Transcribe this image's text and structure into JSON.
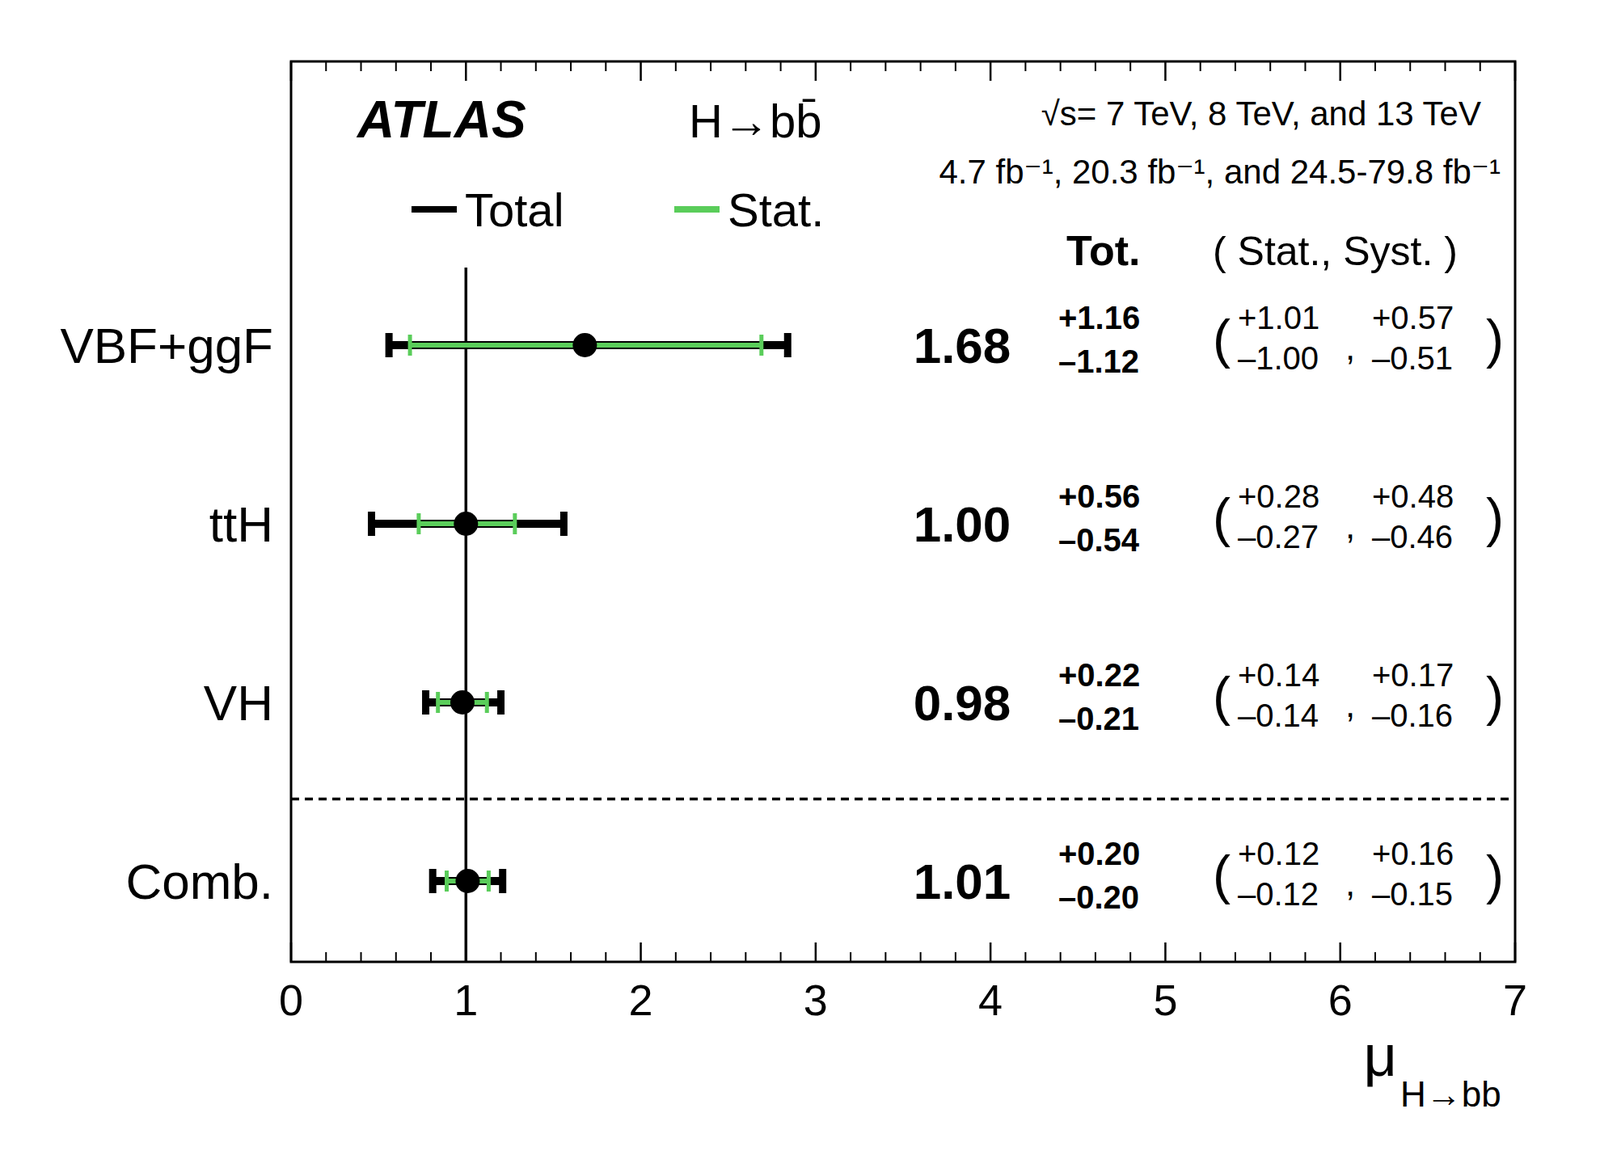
{
  "chart_data": {
    "type": "errorbar",
    "orientation": "horizontal",
    "experiment": "ATLAS",
    "process": "H→bb̄",
    "energy": "√s= 7 TeV, 8 TeV, and 13 TeV",
    "luminosity": "4.7 fb⁻¹, 20.3 fb⁻¹, and 24.5-79.8 fb⁻¹",
    "column_headers": [
      "Tot.",
      "( Stat., Syst. )"
    ],
    "row_punctuation": [
      "(",
      ",",
      ")"
    ],
    "categories": [
      "VBF+ggF",
      "ttH",
      "VH",
      "Comb."
    ],
    "values": [
      1.68,
      1.0,
      0.98,
      1.01
    ],
    "value_labels": [
      "1.68",
      "1.00",
      "0.98",
      "1.01"
    ],
    "series": [
      {
        "name": "Total",
        "color": "#000000",
        "plus": [
          1.16,
          0.56,
          0.22,
          0.2
        ],
        "minus": [
          -1.12,
          -0.54,
          -0.21,
          -0.2
        ],
        "plus_labels": [
          "+1.16",
          "+0.56",
          "+0.22",
          "+0.20"
        ],
        "minus_labels": [
          "–1.12",
          "–0.54",
          "–0.21",
          "–0.20"
        ]
      },
      {
        "name": "Stat.",
        "color": "#5acd5a",
        "plus": [
          1.01,
          0.28,
          0.14,
          0.12
        ],
        "minus": [
          -1.0,
          -0.27,
          -0.14,
          -0.12
        ],
        "plus_labels": [
          "+1.01",
          "+0.28",
          "+0.14",
          "+0.12"
        ],
        "minus_labels": [
          "–1.00",
          "–0.27",
          "–0.14",
          "–0.12"
        ]
      }
    ],
    "syst": {
      "plus": [
        0.57,
        0.48,
        0.17,
        0.16
      ],
      "minus": [
        -0.51,
        -0.46,
        -0.16,
        -0.15
      ],
      "plus_labels": [
        "+0.57",
        "+0.48",
        "+0.17",
        "+0.16"
      ],
      "minus_labels": [
        "–0.51",
        "–0.46",
        "–0.16",
        "–0.15"
      ]
    },
    "reference_line": 1,
    "xlabel": "μ",
    "xlabel_subscript": "H→bb",
    "xlim": [
      0,
      7
    ],
    "xticks": [
      0,
      1,
      2,
      3,
      4,
      5,
      6,
      7
    ],
    "xminor_ticks": [
      0.2,
      0.4,
      0.6,
      0.8,
      1.2,
      1.4,
      1.6,
      1.8,
      2.2,
      2.4,
      2.6,
      2.8,
      3.2,
      3.4,
      3.6,
      3.8,
      4.2,
      4.4,
      4.6,
      4.8,
      5.2,
      5.4,
      5.6,
      5.8,
      6.2,
      6.4,
      6.6,
      6.8
    ]
  }
}
